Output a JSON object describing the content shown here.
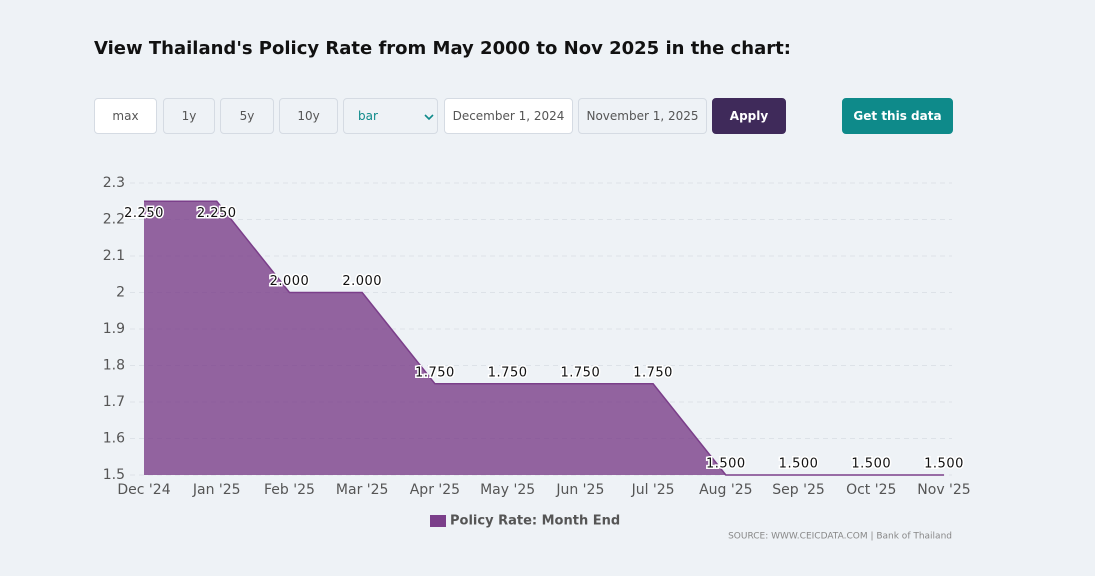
{
  "heading": "View Thailand's Policy Rate from May 2000 to Nov 2025 in the chart:",
  "controls": {
    "ranges": [
      "max",
      "1y",
      "5y",
      "10y"
    ],
    "chart_type": "bar",
    "start_date": "December 1, 2024",
    "end_date": "November 1, 2025",
    "apply": "Apply",
    "get_data": "Get this data"
  },
  "chart_data": {
    "type": "area",
    "categories": [
      "Dec '24",
      "Jan '25",
      "Feb '25",
      "Mar '25",
      "Apr '25",
      "May '25",
      "Jun '25",
      "Jul '25",
      "Aug '25",
      "Sep '25",
      "Oct '25",
      "Nov '25"
    ],
    "series": [
      {
        "name": "Policy Rate: Month End",
        "color": "#7b3f8a",
        "values": [
          2.25,
          2.25,
          2.0,
          2.0,
          1.75,
          1.75,
          1.75,
          1.75,
          1.5,
          1.5,
          1.5,
          1.5
        ],
        "value_labels": [
          "2.250",
          "2.250",
          "2.000",
          "2.000",
          "1.750",
          "1.750",
          "1.750",
          "1.750",
          "1.500",
          "1.500",
          "1.500",
          "1.500"
        ]
      }
    ],
    "ylim": [
      1.5,
      2.3
    ],
    "yticks": [
      1.5,
      1.6,
      1.7,
      1.8,
      1.9,
      2,
      2.1,
      2.2,
      2.3
    ],
    "grid": true,
    "source": "SOURCE: WWW.CEICDATA.COM | Bank of Thailand"
  }
}
